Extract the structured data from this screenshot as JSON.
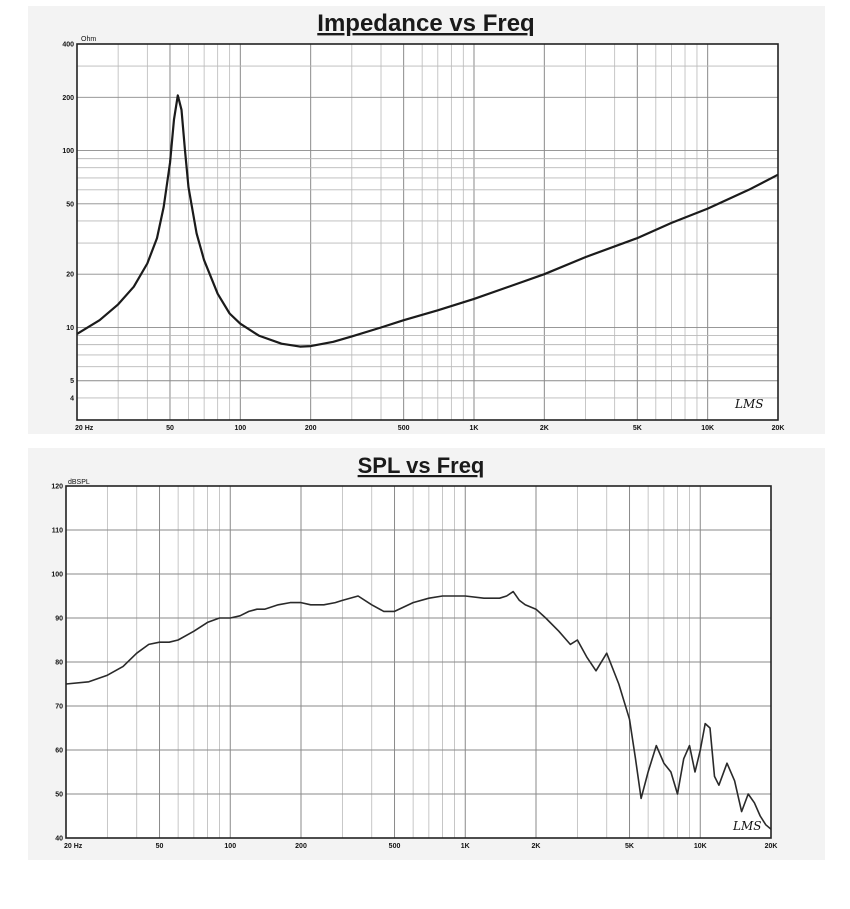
{
  "chart_data": [
    {
      "type": "line",
      "title": "Impedance vs Freq",
      "ylabel": "Ohm",
      "xscale": "log",
      "yscale": "log",
      "xlim": [
        20,
        20000
      ],
      "ylim": [
        3,
        400
      ],
      "x_ticks": [
        {
          "value": 20,
          "label": "20 Hz"
        },
        {
          "value": 50,
          "label": "50"
        },
        {
          "value": 100,
          "label": "100"
        },
        {
          "value": 200,
          "label": "200"
        },
        {
          "value": 500,
          "label": "500"
        },
        {
          "value": 1000,
          "label": "1K"
        },
        {
          "value": 2000,
          "label": "2K"
        },
        {
          "value": 5000,
          "label": "5K"
        },
        {
          "value": 10000,
          "label": "10K"
        },
        {
          "value": 20000,
          "label": "20K"
        }
      ],
      "y_ticks": [
        {
          "value": 400,
          "label": "400"
        },
        {
          "value": 200,
          "label": "200"
        },
        {
          "value": 100,
          "label": "100"
        },
        {
          "value": 50,
          "label": "50"
        },
        {
          "value": 20,
          "label": "20"
        },
        {
          "value": 10,
          "label": "10"
        },
        {
          "value": 5,
          "label": "5"
        },
        {
          "value": 4,
          "label": "4"
        }
      ],
      "grid": true,
      "signature": "LMS",
      "series": [
        {
          "x": [
            20,
            25,
            30,
            35,
            40,
            44,
            47,
            50,
            52,
            54,
            56,
            58,
            60,
            65,
            70,
            80,
            90,
            100,
            120,
            150,
            180,
            200,
            250,
            300,
            400,
            500,
            700,
            1000,
            1500,
            2000,
            3000,
            5000,
            7000,
            10000,
            15000,
            20000
          ],
          "values": [
            9.2,
            11,
            13.5,
            17,
            23,
            32,
            48,
            85,
            150,
            205,
            170,
            100,
            62,
            34,
            24,
            15.5,
            12,
            10.5,
            9,
            8.1,
            7.8,
            7.85,
            8.3,
            8.9,
            10,
            11,
            12.5,
            14.5,
            17.5,
            20,
            25,
            32,
            39,
            47,
            60,
            73
          ]
        }
      ]
    },
    {
      "type": "line",
      "title": "SPL vs Freq",
      "ylabel": "dBSPL",
      "xscale": "log",
      "xlim": [
        20,
        20000
      ],
      "ylim": [
        40,
        120
      ],
      "x_ticks": [
        {
          "value": 20,
          "label": "20 Hz"
        },
        {
          "value": 50,
          "label": "50"
        },
        {
          "value": 100,
          "label": "100"
        },
        {
          "value": 200,
          "label": "200"
        },
        {
          "value": 500,
          "label": "500"
        },
        {
          "value": 1000,
          "label": "1K"
        },
        {
          "value": 2000,
          "label": "2K"
        },
        {
          "value": 5000,
          "label": "5K"
        },
        {
          "value": 10000,
          "label": "10K"
        },
        {
          "value": 20000,
          "label": "20K"
        }
      ],
      "y_ticks": [
        {
          "value": 120,
          "label": "120"
        },
        {
          "value": 110,
          "label": "110"
        },
        {
          "value": 100,
          "label": "100"
        },
        {
          "value": 90,
          "label": "90"
        },
        {
          "value": 80,
          "label": "80"
        },
        {
          "value": 70,
          "label": "70"
        },
        {
          "value": 60,
          "label": "60"
        },
        {
          "value": 50,
          "label": "50"
        },
        {
          "value": 40,
          "label": "40"
        }
      ],
      "grid": true,
      "signature": "LMS",
      "series": [
        {
          "x": [
            20,
            25,
            30,
            35,
            40,
            45,
            50,
            55,
            60,
            70,
            80,
            90,
            100,
            110,
            120,
            130,
            140,
            160,
            180,
            200,
            220,
            250,
            280,
            300,
            350,
            400,
            450,
            500,
            600,
            700,
            800,
            1000,
            1200,
            1400,
            1500,
            1600,
            1700,
            1800,
            2000,
            2200,
            2500,
            2800,
            3000,
            3300,
            3600,
            4000,
            4500,
            5000,
            5300,
            5600,
            6000,
            6500,
            7000,
            7500,
            8000,
            8500,
            9000,
            9500,
            10000,
            10500,
            11000,
            11500,
            12000,
            13000,
            14000,
            15000,
            16000,
            17000,
            18000,
            19000,
            20000
          ],
          "values": [
            75,
            75.5,
            77,
            79,
            82,
            84,
            84.5,
            84.5,
            85,
            87,
            89,
            90,
            90,
            90.5,
            91.5,
            92,
            92,
            93,
            93.5,
            93.5,
            93,
            93,
            93.5,
            94,
            95,
            93,
            91.5,
            91.5,
            93.5,
            94.5,
            95,
            95,
            94.5,
            94.5,
            95,
            96,
            94,
            93,
            92,
            90,
            87,
            84,
            85,
            81,
            78,
            82,
            75,
            67,
            58,
            49,
            55,
            61,
            57,
            55,
            50,
            58,
            61,
            55,
            60,
            66,
            65,
            54,
            52,
            57,
            53,
            46,
            50,
            48,
            45,
            43,
            42
          ]
        }
      ]
    }
  ]
}
